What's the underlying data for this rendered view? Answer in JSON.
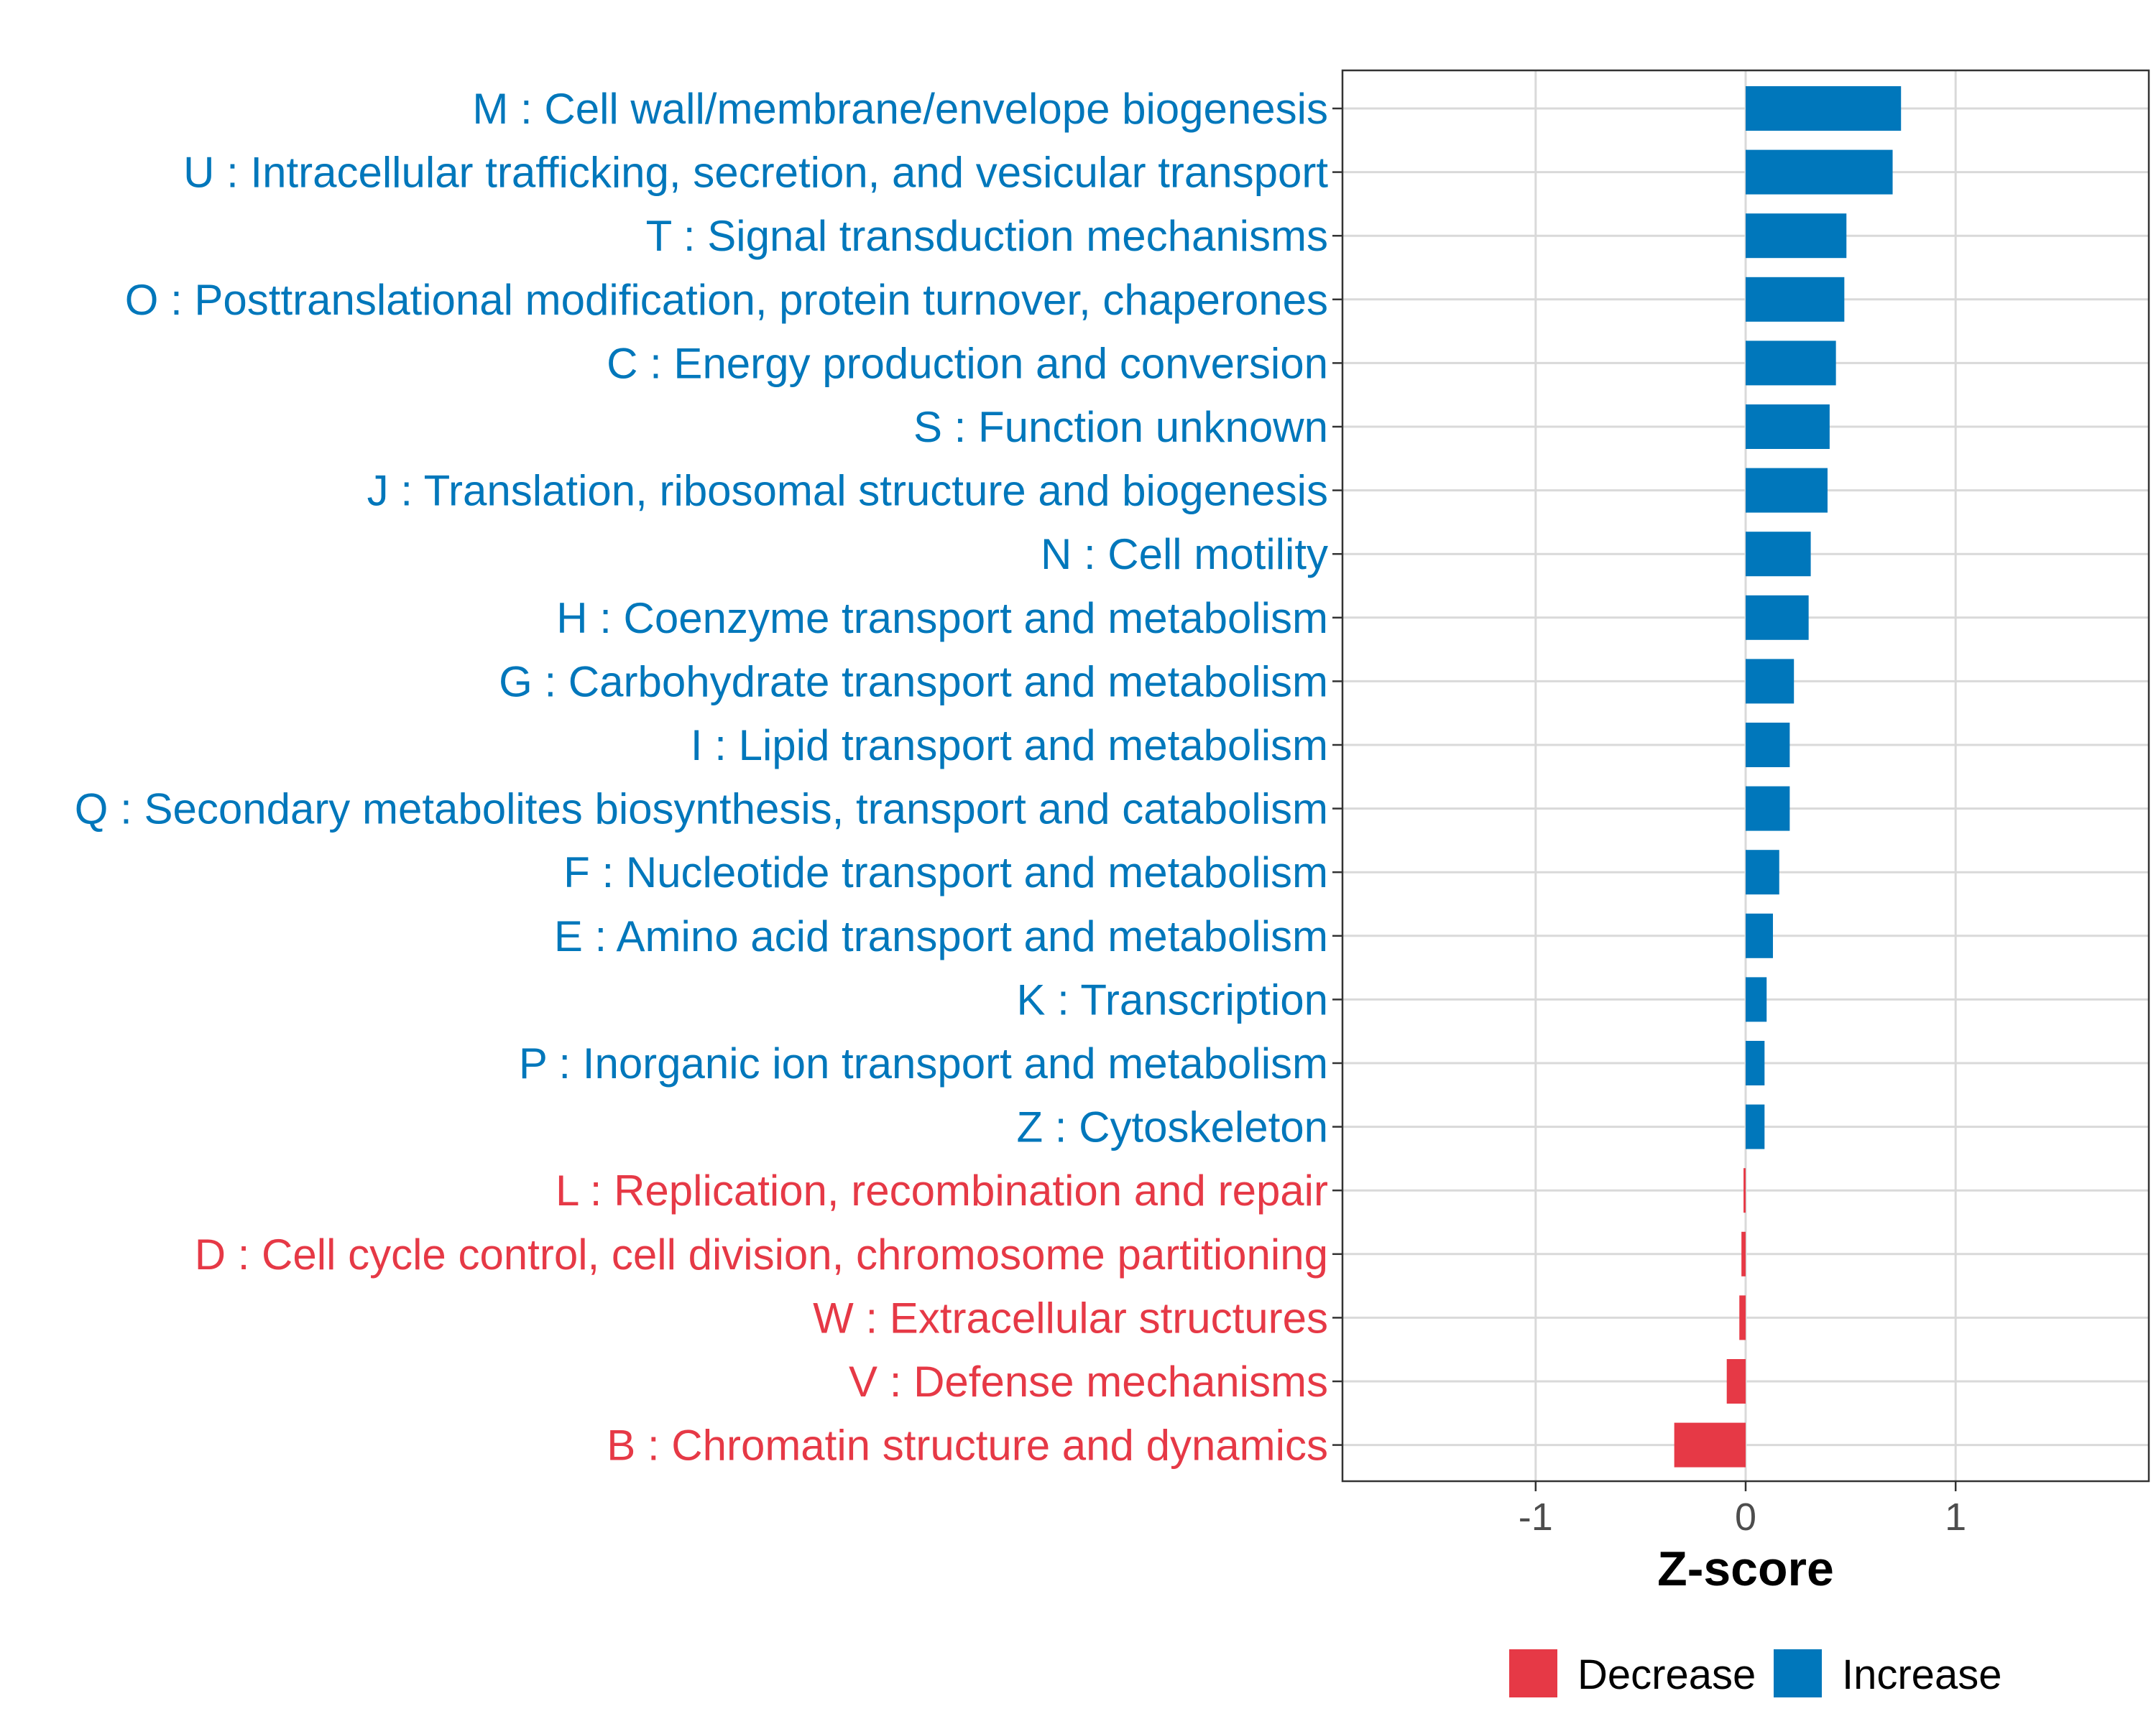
{
  "chart_data": {
    "type": "bar",
    "orientation": "horizontal",
    "title": "",
    "xlabel": "Z-score",
    "ylabel": "",
    "xlim": [
      -1.92,
      1.92
    ],
    "xticks": [
      -1,
      0,
      1
    ],
    "xtick_labels": [
      "-1",
      "0",
      "1"
    ],
    "grid": true,
    "legend_position": "bottom",
    "colors": {
      "Increase": "#0077bb",
      "Decrease": "#e63946",
      "grid": "#d9d9d9",
      "panel_border": "#333333"
    },
    "legend": [
      {
        "name": "Decrease",
        "color": "#e63946"
      },
      {
        "name": "Increase",
        "color": "#0077bb"
      }
    ],
    "categories": [
      "M : Cell wall/membrane/envelope biogenesis",
      "U : Intracellular trafficking, secretion, and vesicular transport",
      "T : Signal transduction mechanisms",
      "O : Posttranslational modification, protein turnover, chaperones",
      "C : Energy production and conversion",
      "S : Function unknown",
      "J : Translation, ribosomal structure and biogenesis",
      "N : Cell motility",
      "H : Coenzyme transport and metabolism",
      "G : Carbohydrate transport and metabolism",
      "I : Lipid transport and metabolism",
      "Q : Secondary metabolites biosynthesis, transport and catabolism",
      "F : Nucleotide transport and metabolism",
      "E : Amino acid transport and metabolism",
      "K : Transcription",
      "P : Inorganic ion transport and metabolism",
      "Z : Cytoskeleton",
      "L : Replication, recombination and repair",
      "D : Cell cycle control, cell division, chromosome partitioning",
      "W : Extracellular structures",
      "V : Defense mechanisms",
      "B : Chromatin structure and dynamics"
    ],
    "values": [
      0.74,
      0.7,
      0.48,
      0.47,
      0.43,
      0.4,
      0.39,
      0.31,
      0.3,
      0.23,
      0.21,
      0.21,
      0.16,
      0.13,
      0.1,
      0.09,
      0.09,
      -0.01,
      -0.02,
      -0.03,
      -0.09,
      -0.34
    ],
    "direction": [
      "Increase",
      "Increase",
      "Increase",
      "Increase",
      "Increase",
      "Increase",
      "Increase",
      "Increase",
      "Increase",
      "Increase",
      "Increase",
      "Increase",
      "Increase",
      "Increase",
      "Increase",
      "Increase",
      "Increase",
      "Decrease",
      "Decrease",
      "Decrease",
      "Decrease",
      "Decrease"
    ]
  }
}
